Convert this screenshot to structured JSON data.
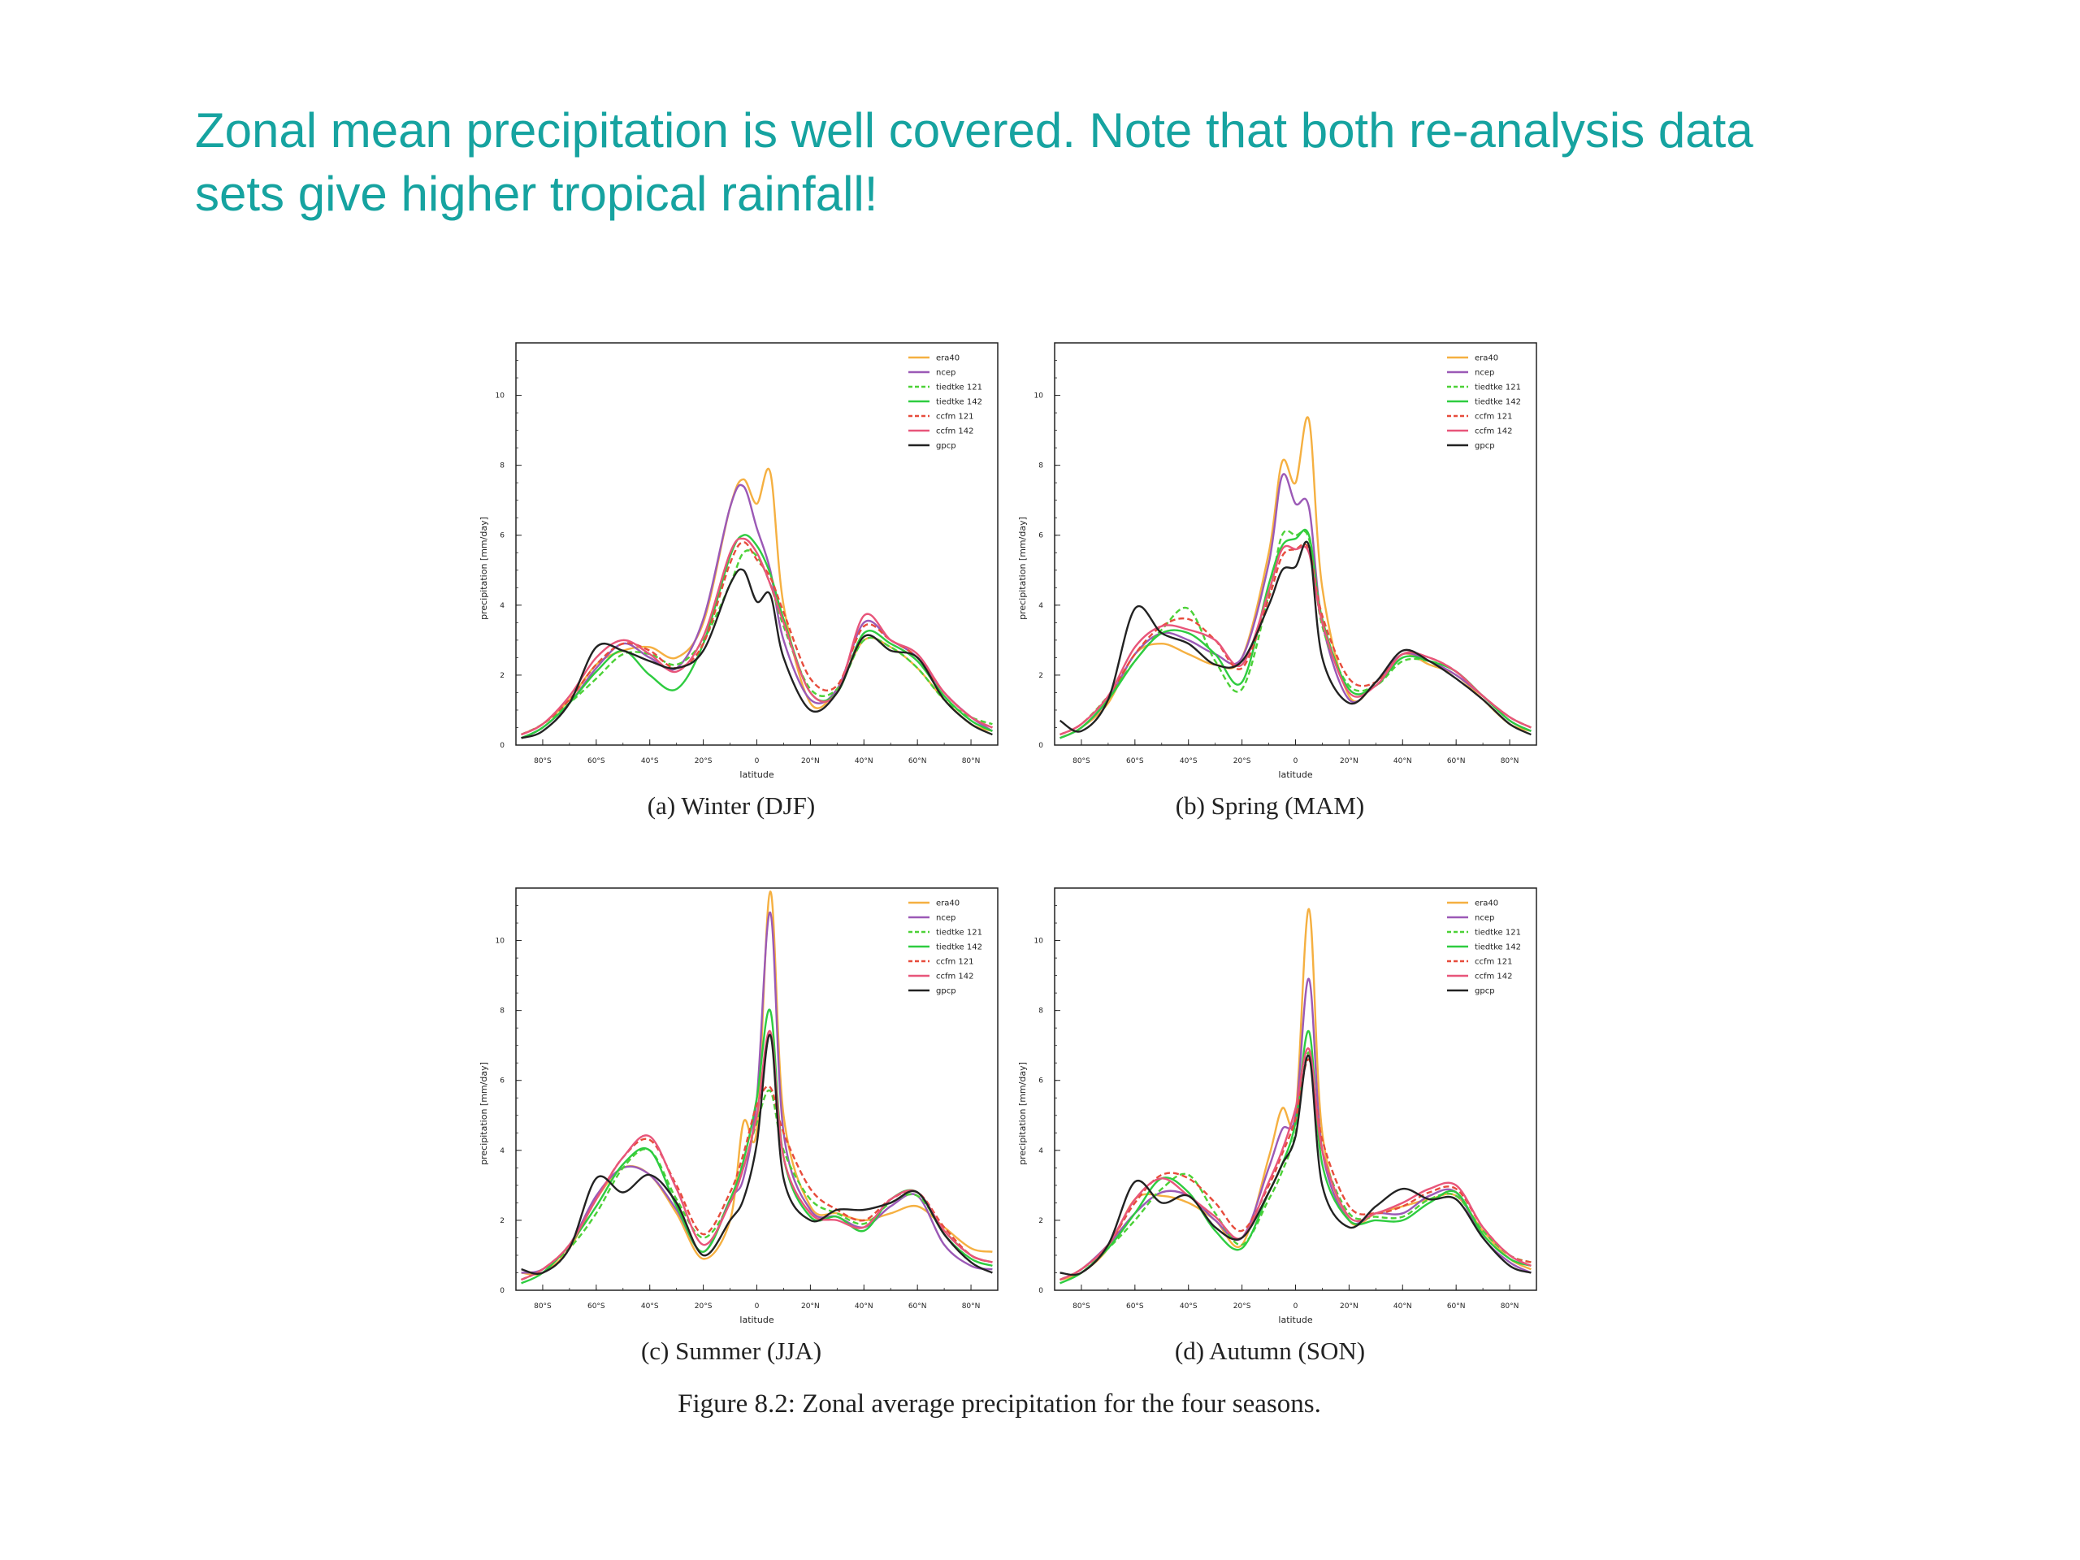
{
  "heading": {
    "line1": "Zonal mean precipitation is well covered. Note that both re-analysis data",
    "line2": "sets give higher tropical rainfall!"
  },
  "figure_caption": "Figure 8.2: Zonal average precipitation for the four seasons.",
  "series_styles": [
    {
      "name": "era40",
      "color": "#f5b041",
      "dash": "none"
    },
    {
      "name": "ncep",
      "color": "#9b59b6",
      "dash": "none"
    },
    {
      "name": "tiedtke 121",
      "color": "#4cd137",
      "dash": "dashed"
    },
    {
      "name": "tiedtke 142",
      "color": "#2ecc40",
      "dash": "none"
    },
    {
      "name": "ccfm 121",
      "color": "#e74c3c",
      "dash": "dashed"
    },
    {
      "name": "ccfm 142",
      "color": "#e8557a",
      "dash": "none"
    },
    {
      "name": "gpcp",
      "color": "#222222",
      "dash": "none"
    }
  ],
  "chart_data": [
    {
      "type": "line",
      "title": "(a) Winter (DJF)",
      "xlabel": "latitude",
      "ylabel": "precipitation [mm/day]",
      "xlim": [
        -90,
        90
      ],
      "ylim": [
        0,
        11.5
      ],
      "x_ticks": [
        -80,
        -60,
        -40,
        -20,
        0,
        20,
        40,
        60,
        80
      ],
      "x_tick_labels": [
        "80°S",
        "60°S",
        "40°S",
        "20°S",
        "0",
        "20°N",
        "40°N",
        "60°N",
        "80°N"
      ],
      "y_ticks": [
        0,
        2,
        4,
        6,
        8,
        10
      ],
      "legend_position": "top-right",
      "x": [
        -88,
        -80,
        -70,
        -60,
        -50,
        -40,
        -30,
        -20,
        -10,
        -5,
        0,
        5,
        10,
        20,
        30,
        40,
        50,
        60,
        70,
        80,
        88
      ],
      "series": [
        {
          "name": "era40",
          "values": [
            0.3,
            0.6,
            1.3,
            2.3,
            2.7,
            2.8,
            2.5,
            3.5,
            6.8,
            7.6,
            6.9,
            7.8,
            4.0,
            1.2,
            1.6,
            3.0,
            2.8,
            2.2,
            1.3,
            0.6,
            0.4
          ]
        },
        {
          "name": "ncep",
          "values": [
            0.2,
            0.5,
            1.2,
            2.2,
            2.9,
            2.5,
            2.2,
            3.6,
            6.8,
            7.4,
            6.2,
            5.0,
            3.0,
            1.3,
            1.6,
            3.5,
            3.0,
            2.5,
            1.5,
            0.8,
            0.4
          ]
        },
        {
          "name": "tiedtke 121",
          "values": [
            0.3,
            0.6,
            1.2,
            1.9,
            2.6,
            2.6,
            2.3,
            3.0,
            4.6,
            5.5,
            5.4,
            4.6,
            3.4,
            1.6,
            1.6,
            3.0,
            2.8,
            2.2,
            1.3,
            0.8,
            0.6
          ]
        },
        {
          "name": "tiedtke 142",
          "values": [
            0.2,
            0.5,
            1.2,
            2.1,
            2.7,
            2.0,
            1.6,
            2.9,
            5.4,
            6.0,
            5.7,
            4.9,
            3.6,
            1.5,
            1.5,
            3.2,
            2.9,
            2.4,
            1.4,
            0.7,
            0.4
          ]
        },
        {
          "name": "ccfm 121",
          "values": [
            0.3,
            0.6,
            1.3,
            2.3,
            2.9,
            2.7,
            2.2,
            2.9,
            5.2,
            5.8,
            5.3,
            4.8,
            3.8,
            1.9,
            1.7,
            3.4,
            3.0,
            2.5,
            1.5,
            0.8,
            0.5
          ]
        },
        {
          "name": "ccfm 142",
          "values": [
            0.3,
            0.6,
            1.4,
            2.5,
            3.0,
            2.6,
            2.1,
            3.1,
            5.5,
            5.9,
            5.5,
            4.6,
            3.5,
            1.5,
            1.5,
            3.7,
            3.0,
            2.6,
            1.5,
            0.8,
            0.5
          ]
        },
        {
          "name": "gpcp",
          "values": [
            0.2,
            0.4,
            1.2,
            2.8,
            2.7,
            2.4,
            2.2,
            2.7,
            4.6,
            5.0,
            4.1,
            4.3,
            2.5,
            1.0,
            1.5,
            3.1,
            2.7,
            2.5,
            1.3,
            0.6,
            0.3
          ]
        }
      ]
    },
    {
      "type": "line",
      "title": "(b) Spring (MAM)",
      "xlabel": "latitude",
      "ylabel": "precipitation [mm/day]",
      "xlim": [
        -90,
        90
      ],
      "ylim": [
        0,
        11.5
      ],
      "x_ticks": [
        -80,
        -60,
        -40,
        -20,
        0,
        20,
        40,
        60,
        80
      ],
      "x_tick_labels": [
        "80°S",
        "60°S",
        "40°S",
        "20°S",
        "0",
        "20°N",
        "40°N",
        "60°N",
        "80°N"
      ],
      "y_ticks": [
        0,
        2,
        4,
        6,
        8,
        10
      ],
      "legend_position": "top-right",
      "x": [
        -88,
        -80,
        -70,
        -60,
        -50,
        -40,
        -30,
        -20,
        -10,
        -5,
        0,
        5,
        10,
        20,
        30,
        40,
        50,
        60,
        70,
        80,
        88
      ],
      "series": [
        {
          "name": "era40",
          "values": [
            0.2,
            0.5,
            1.2,
            2.6,
            2.9,
            2.6,
            2.3,
            2.5,
            5.5,
            8.1,
            7.5,
            9.3,
            4.5,
            1.4,
            1.8,
            2.6,
            2.3,
            2.0,
            1.3,
            0.6,
            0.4
          ]
        },
        {
          "name": "ncep",
          "values": [
            0.2,
            0.5,
            1.3,
            2.6,
            3.2,
            3.0,
            2.6,
            2.5,
            5.2,
            7.7,
            6.9,
            6.8,
            3.5,
            1.3,
            1.8,
            2.6,
            2.4,
            2.0,
            1.4,
            0.7,
            0.4
          ]
        },
        {
          "name": "tiedtke 121",
          "values": [
            0.3,
            0.6,
            1.4,
            2.4,
            3.3,
            3.9,
            2.4,
            1.6,
            4.3,
            6.0,
            6.0,
            5.9,
            3.4,
            1.7,
            1.7,
            2.4,
            2.4,
            2.1,
            1.4,
            0.8,
            0.5
          ]
        },
        {
          "name": "tiedtke 142",
          "values": [
            0.2,
            0.5,
            1.3,
            2.4,
            3.2,
            3.2,
            2.6,
            1.8,
            4.6,
            5.7,
            5.9,
            6.0,
            3.6,
            1.6,
            1.7,
            2.5,
            2.4,
            2.1,
            1.4,
            0.7,
            0.4
          ]
        },
        {
          "name": "ccfm 121",
          "values": [
            0.3,
            0.6,
            1.4,
            2.6,
            3.4,
            3.6,
            3.0,
            2.2,
            4.2,
            5.4,
            5.6,
            5.6,
            3.7,
            1.9,
            1.8,
            2.6,
            2.5,
            2.1,
            1.4,
            0.8,
            0.5
          ]
        },
        {
          "name": "ccfm 142",
          "values": [
            0.3,
            0.6,
            1.4,
            2.8,
            3.4,
            3.3,
            3.0,
            2.3,
            4.4,
            5.6,
            5.6,
            5.5,
            3.5,
            1.5,
            1.7,
            2.6,
            2.5,
            2.1,
            1.4,
            0.8,
            0.5
          ]
        },
        {
          "name": "gpcp",
          "values": [
            0.7,
            0.4,
            1.3,
            3.9,
            3.2,
            2.9,
            2.3,
            2.4,
            4.0,
            5.0,
            5.1,
            5.7,
            2.5,
            1.2,
            1.8,
            2.7,
            2.4,
            1.9,
            1.3,
            0.6,
            0.3
          ]
        }
      ]
    },
    {
      "type": "line",
      "title": "(c) Summer (JJA)",
      "xlabel": "latitude",
      "ylabel": "precipitation [mm/day]",
      "xlim": [
        -90,
        90
      ],
      "ylim": [
        0,
        11.5
      ],
      "x_ticks": [
        -80,
        -60,
        -40,
        -20,
        0,
        20,
        40,
        60,
        80
      ],
      "x_tick_labels": [
        "80°S",
        "60°S",
        "40°S",
        "20°S",
        "0",
        "20°N",
        "40°N",
        "60°N",
        "80°N"
      ],
      "y_ticks": [
        0,
        2,
        4,
        6,
        8,
        10
      ],
      "legend_position": "top-right",
      "x": [
        -88,
        -80,
        -70,
        -60,
        -50,
        -40,
        -30,
        -20,
        -10,
        -5,
        0,
        5,
        10,
        20,
        30,
        40,
        50,
        60,
        70,
        80,
        88
      ],
      "series": [
        {
          "name": "era40",
          "values": [
            0.5,
            0.5,
            1.2,
            2.6,
            3.5,
            3.3,
            2.2,
            0.9,
            2.0,
            4.8,
            4.6,
            11.4,
            5.0,
            2.4,
            2.2,
            2.0,
            2.2,
            2.4,
            1.8,
            1.2,
            1.1
          ]
        },
        {
          "name": "ncep",
          "values": [
            0.5,
            0.6,
            1.3,
            2.7,
            3.5,
            3.3,
            2.3,
            1.1,
            2.6,
            3.2,
            5.5,
            10.8,
            4.5,
            2.3,
            2.1,
            1.8,
            2.4,
            2.7,
            1.3,
            0.7,
            0.6
          ]
        },
        {
          "name": "tiedtke 121",
          "values": [
            0.3,
            0.6,
            1.2,
            2.2,
            3.5,
            4.0,
            2.6,
            1.5,
            2.5,
            3.5,
            4.8,
            5.7,
            4.0,
            2.6,
            2.2,
            1.9,
            2.5,
            2.7,
            1.7,
            1.0,
            0.8
          ]
        },
        {
          "name": "tiedtke 142",
          "values": [
            0.2,
            0.5,
            1.3,
            2.4,
            3.6,
            4.0,
            2.4,
            1.1,
            2.6,
            3.7,
            5.5,
            8.0,
            3.8,
            2.1,
            2.1,
            1.7,
            2.6,
            2.8,
            1.6,
            0.9,
            0.7
          ]
        },
        {
          "name": "ccfm 121",
          "values": [
            0.3,
            0.6,
            1.3,
            2.6,
            3.8,
            4.3,
            3.0,
            1.6,
            2.8,
            3.9,
            5.3,
            5.8,
            4.5,
            2.9,
            2.3,
            2.0,
            2.6,
            2.8,
            1.8,
            1.0,
            0.8
          ]
        },
        {
          "name": "ccfm 142",
          "values": [
            0.3,
            0.6,
            1.3,
            2.6,
            3.8,
            4.4,
            2.9,
            1.3,
            2.5,
            3.5,
            5.0,
            7.4,
            3.8,
            2.2,
            2.0,
            1.8,
            2.6,
            2.8,
            1.7,
            1.0,
            0.8
          ]
        },
        {
          "name": "gpcp",
          "values": [
            0.6,
            0.5,
            1.2,
            3.2,
            2.8,
            3.3,
            2.5,
            1.0,
            2.0,
            2.6,
            4.2,
            7.3,
            3.2,
            2.0,
            2.3,
            2.3,
            2.5,
            2.8,
            1.6,
            0.8,
            0.5
          ]
        }
      ]
    },
    {
      "type": "line",
      "title": "(d) Autumn (SON)",
      "xlabel": "latitude",
      "ylabel": "precipitation [mm/day]",
      "xlim": [
        -90,
        90
      ],
      "ylim": [
        0,
        11.5
      ],
      "x_ticks": [
        -80,
        -60,
        -40,
        -20,
        0,
        20,
        40,
        60,
        80
      ],
      "x_tick_labels": [
        "80°S",
        "60°S",
        "40°S",
        "20°S",
        "0",
        "20°N",
        "40°N",
        "60°N",
        "80°N"
      ],
      "y_ticks": [
        0,
        2,
        4,
        6,
        8,
        10
      ],
      "legend_position": "top-right",
      "x": [
        -88,
        -80,
        -70,
        -60,
        -50,
        -40,
        -30,
        -20,
        -10,
        -5,
        0,
        5,
        10,
        20,
        30,
        40,
        50,
        60,
        70,
        80,
        88
      ],
      "series": [
        {
          "name": "era40",
          "values": [
            0.3,
            0.5,
            1.2,
            2.6,
            2.7,
            2.5,
            2.0,
            1.3,
            3.8,
            5.2,
            5.0,
            10.9,
            4.5,
            2.0,
            2.2,
            2.4,
            2.6,
            2.7,
            1.7,
            0.9,
            0.6
          ]
        },
        {
          "name": "ncep",
          "values": [
            0.3,
            0.6,
            1.3,
            2.2,
            2.8,
            2.7,
            2.0,
            1.5,
            3.5,
            4.6,
            5.0,
            8.9,
            4.0,
            2.0,
            2.2,
            2.2,
            2.7,
            2.8,
            1.5,
            0.8,
            0.5
          ]
        },
        {
          "name": "tiedtke 121",
          "values": [
            0.3,
            0.6,
            1.2,
            2.0,
            2.9,
            3.3,
            2.2,
            1.3,
            2.6,
            3.4,
            4.5,
            6.8,
            4.0,
            2.2,
            2.1,
            2.1,
            2.6,
            2.7,
            1.7,
            1.0,
            0.8
          ]
        },
        {
          "name": "tiedtke 142",
          "values": [
            0.2,
            0.5,
            1.2,
            2.2,
            3.2,
            2.8,
            1.7,
            1.2,
            2.8,
            3.6,
            4.8,
            7.4,
            3.6,
            2.0,
            2.0,
            2.0,
            2.5,
            2.8,
            1.6,
            0.9,
            0.7
          ]
        },
        {
          "name": "ccfm 121",
          "values": [
            0.3,
            0.6,
            1.3,
            2.5,
            3.3,
            3.2,
            2.5,
            1.7,
            3.0,
            3.9,
            4.9,
            6.6,
            4.3,
            2.4,
            2.2,
            2.4,
            2.8,
            2.9,
            1.8,
            1.0,
            0.8
          ]
        },
        {
          "name": "ccfm 142",
          "values": [
            0.3,
            0.6,
            1.3,
            2.6,
            3.2,
            2.7,
            2.1,
            1.5,
            3.1,
            4.0,
            5.2,
            6.9,
            4.0,
            2.1,
            2.2,
            2.5,
            2.9,
            3.0,
            1.8,
            1.0,
            0.7
          ]
        },
        {
          "name": "gpcp",
          "values": [
            0.5,
            0.5,
            1.3,
            3.1,
            2.5,
            2.7,
            1.8,
            1.5,
            2.8,
            3.6,
            4.4,
            6.7,
            3.0,
            1.8,
            2.4,
            2.9,
            2.6,
            2.6,
            1.5,
            0.7,
            0.5
          ]
        }
      ]
    }
  ]
}
